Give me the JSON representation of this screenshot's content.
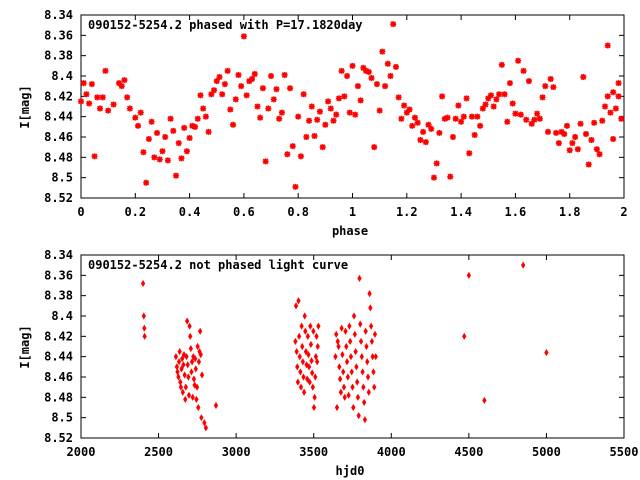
{
  "chart_data": [
    {
      "type": "scatter",
      "title": "090152-5254.2 phased with P=17.1820day",
      "xlabel": "phase",
      "ylabel": "I[mag]",
      "xlim": [
        0,
        2
      ],
      "ylim": [
        8.52,
        8.34
      ],
      "y_inverted": true,
      "xticks": [
        "0",
        "0.2",
        "0.4",
        "0.6",
        "0.8",
        "1",
        "1.2",
        "1.4",
        "1.6",
        "1.8",
        "2"
      ],
      "yticks": [
        "8.34",
        "8.36",
        "8.38",
        "8.4",
        "8.42",
        "8.44",
        "8.46",
        "8.48",
        "8.5",
        "8.52"
      ],
      "marker": "star",
      "color": "#ff0000",
      "points": [
        [
          0.0,
          8.425
        ],
        [
          0.01,
          8.407
        ],
        [
          0.02,
          8.418
        ],
        [
          0.03,
          8.427
        ],
        [
          0.04,
          8.408
        ],
        [
          0.05,
          8.479
        ],
        [
          0.06,
          8.421
        ],
        [
          0.07,
          8.432
        ],
        [
          0.08,
          8.421
        ],
        [
          0.09,
          8.395
        ],
        [
          0.1,
          8.434
        ],
        [
          0.12,
          8.428
        ],
        [
          0.14,
          8.407
        ],
        [
          0.15,
          8.41
        ],
        [
          0.16,
          8.404
        ],
        [
          0.17,
          8.421
        ],
        [
          0.18,
          8.432
        ],
        [
          0.2,
          8.441
        ],
        [
          0.21,
          8.449
        ],
        [
          0.22,
          8.436
        ],
        [
          0.23,
          8.475
        ],
        [
          0.24,
          8.505
        ],
        [
          0.25,
          8.462
        ],
        [
          0.26,
          8.445
        ],
        [
          0.27,
          8.48
        ],
        [
          0.28,
          8.456
        ],
        [
          0.29,
          8.482
        ],
        [
          0.3,
          8.474
        ],
        [
          0.31,
          8.46
        ],
        [
          0.32,
          8.483
        ],
        [
          0.33,
          8.442
        ],
        [
          0.34,
          8.454
        ],
        [
          0.35,
          8.498
        ],
        [
          0.36,
          8.466
        ],
        [
          0.37,
          8.481
        ],
        [
          0.38,
          8.451
        ],
        [
          0.39,
          8.474
        ],
        [
          0.4,
          8.461
        ],
        [
          0.41,
          8.449
        ],
        [
          0.42,
          8.45
        ],
        [
          0.43,
          8.442
        ],
        [
          0.44,
          8.419
        ],
        [
          0.45,
          8.432
        ],
        [
          0.46,
          8.44
        ],
        [
          0.47,
          8.455
        ],
        [
          0.48,
          8.418
        ],
        [
          0.49,
          8.414
        ],
        [
          0.5,
          8.405
        ],
        [
          0.51,
          8.401
        ],
        [
          0.52,
          8.418
        ],
        [
          0.53,
          8.408
        ],
        [
          0.54,
          8.395
        ],
        [
          0.55,
          8.433
        ],
        [
          0.56,
          8.448
        ],
        [
          0.57,
          8.423
        ],
        [
          0.58,
          8.399
        ],
        [
          0.59,
          8.41
        ],
        [
          0.6,
          8.361
        ],
        [
          0.61,
          8.419
        ],
        [
          0.62,
          8.405
        ],
        [
          0.63,
          8.403
        ],
        [
          0.64,
          8.398
        ],
        [
          0.65,
          8.43
        ],
        [
          0.66,
          8.441
        ],
        [
          0.67,
          8.412
        ],
        [
          0.68,
          8.484
        ],
        [
          0.69,
          8.432
        ],
        [
          0.7,
          8.4
        ],
        [
          0.71,
          8.423
        ],
        [
          0.72,
          8.413
        ],
        [
          0.73,
          8.442
        ],
        [
          0.74,
          8.436
        ],
        [
          0.75,
          8.399
        ],
        [
          0.76,
          8.477
        ],
        [
          0.77,
          8.412
        ],
        [
          0.78,
          8.469
        ],
        [
          0.79,
          8.509
        ],
        [
          0.8,
          8.44
        ],
        [
          0.81,
          8.479
        ],
        [
          0.82,
          8.418
        ],
        [
          0.83,
          8.46
        ],
        [
          0.84,
          8.444
        ],
        [
          0.85,
          8.43
        ],
        [
          0.86,
          8.459
        ],
        [
          0.87,
          8.443
        ],
        [
          0.88,
          8.435
        ],
        [
          0.89,
          8.47
        ],
        [
          0.9,
          8.448
        ],
        [
          0.91,
          8.425
        ],
        [
          0.92,
          8.432
        ],
        [
          0.93,
          8.444
        ],
        [
          0.94,
          8.438
        ],
        [
          0.95,
          8.422
        ],
        [
          0.96,
          8.395
        ],
        [
          0.97,
          8.42
        ],
        [
          0.98,
          8.4
        ],
        [
          0.99,
          8.436
        ],
        [
          1.0,
          8.39
        ],
        [
          1.01,
          8.438
        ],
        [
          1.02,
          8.41
        ],
        [
          1.03,
          8.424
        ],
        [
          1.04,
          8.392
        ],
        [
          1.05,
          8.395
        ],
        [
          1.06,
          8.396
        ],
        [
          1.07,
          8.402
        ],
        [
          1.08,
          8.47
        ],
        [
          1.09,
          8.408
        ],
        [
          1.1,
          8.434
        ],
        [
          1.11,
          8.376
        ],
        [
          1.12,
          8.41
        ],
        [
          1.13,
          8.388
        ],
        [
          1.14,
          8.4
        ],
        [
          1.15,
          8.349
        ],
        [
          1.16,
          8.391
        ],
        [
          1.17,
          8.421
        ],
        [
          1.18,
          8.442
        ],
        [
          1.19,
          8.429
        ],
        [
          1.2,
          8.436
        ],
        [
          1.21,
          8.433
        ],
        [
          1.22,
          8.449
        ],
        [
          1.23,
          8.441
        ],
        [
          1.24,
          8.446
        ],
        [
          1.25,
          8.463
        ],
        [
          1.26,
          8.455
        ],
        [
          1.27,
          8.465
        ],
        [
          1.28,
          8.448
        ],
        [
          1.29,
          8.452
        ],
        [
          1.3,
          8.5
        ],
        [
          1.31,
          8.486
        ],
        [
          1.32,
          8.456
        ],
        [
          1.33,
          8.42
        ],
        [
          1.34,
          8.442
        ],
        [
          1.35,
          8.441
        ],
        [
          1.36,
          8.499
        ],
        [
          1.37,
          8.46
        ],
        [
          1.38,
          8.442
        ],
        [
          1.39,
          8.429
        ],
        [
          1.4,
          8.445
        ],
        [
          1.41,
          8.44
        ],
        [
          1.42,
          8.422
        ],
        [
          1.43,
          8.476
        ],
        [
          1.44,
          8.44
        ],
        [
          1.45,
          8.458
        ],
        [
          1.46,
          8.44
        ],
        [
          1.47,
          8.449
        ],
        [
          1.48,
          8.432
        ],
        [
          1.49,
          8.428
        ],
        [
          1.5,
          8.422
        ],
        [
          1.51,
          8.419
        ],
        [
          1.52,
          8.43
        ],
        [
          1.53,
          8.423
        ],
        [
          1.54,
          8.418
        ],
        [
          1.55,
          8.389
        ],
        [
          1.56,
          8.418
        ],
        [
          1.57,
          8.445
        ],
        [
          1.58,
          8.407
        ],
        [
          1.59,
          8.427
        ],
        [
          1.6,
          8.437
        ],
        [
          1.61,
          8.385
        ],
        [
          1.62,
          8.438
        ],
        [
          1.63,
          8.395
        ],
        [
          1.64,
          8.443
        ],
        [
          1.65,
          8.405
        ],
        [
          1.66,
          8.447
        ],
        [
          1.67,
          8.443
        ],
        [
          1.68,
          8.437
        ],
        [
          1.69,
          8.442
        ],
        [
          1.7,
          8.421
        ],
        [
          1.71,
          8.41
        ],
        [
          1.72,
          8.455
        ],
        [
          1.73,
          8.403
        ],
        [
          1.74,
          8.411
        ],
        [
          1.75,
          8.456
        ],
        [
          1.76,
          8.466
        ],
        [
          1.77,
          8.455
        ],
        [
          1.78,
          8.457
        ],
        [
          1.79,
          8.449
        ],
        [
          1.8,
          8.473
        ],
        [
          1.81,
          8.466
        ],
        [
          1.82,
          8.46
        ],
        [
          1.83,
          8.472
        ],
        [
          1.84,
          8.447
        ],
        [
          1.85,
          8.401
        ],
        [
          1.86,
          8.457
        ],
        [
          1.87,
          8.487
        ],
        [
          1.88,
          8.463
        ],
        [
          1.89,
          8.446
        ],
        [
          1.9,
          8.472
        ],
        [
          1.91,
          8.477
        ],
        [
          1.92,
          8.444
        ],
        [
          1.93,
          8.43
        ],
        [
          1.94,
          8.42
        ],
        [
          1.95,
          8.436
        ],
        [
          1.96,
          8.462
        ],
        [
          1.97,
          8.432
        ],
        [
          1.98,
          8.42
        ],
        [
          1.99,
          8.442
        ],
        [
          1.94,
          8.37
        ],
        [
          1.96,
          8.416
        ],
        [
          1.98,
          8.407
        ]
      ]
    },
    {
      "type": "scatter",
      "title": "090152-5254.2 not phased light curve",
      "xlabel": "hjd0",
      "ylabel": "I[mag]",
      "xlim": [
        2000,
        5500
      ],
      "ylim": [
        8.52,
        8.34
      ],
      "y_inverted": true,
      "xticks": [
        "2000",
        "2500",
        "3000",
        "3500",
        "4000",
        "4500",
        "5000",
        "5500"
      ],
      "yticks": [
        "8.34",
        "8.36",
        "8.38",
        "8.4",
        "8.42",
        "8.44",
        "8.46",
        "8.48",
        "8.5",
        "8.52"
      ],
      "marker": "diamond",
      "color": "#ff0000",
      "points": [
        [
          2400,
          8.368
        ],
        [
          2405,
          8.4
        ],
        [
          2408,
          8.412
        ],
        [
          2410,
          8.42
        ],
        [
          2612,
          8.44
        ],
        [
          2618,
          8.45
        ],
        [
          2622,
          8.455
        ],
        [
          2628,
          8.46
        ],
        [
          2632,
          8.445
        ],
        [
          2636,
          8.435
        ],
        [
          2640,
          8.465
        ],
        [
          2644,
          8.47
        ],
        [
          2648,
          8.452
        ],
        [
          2652,
          8.442
        ],
        [
          2656,
          8.475
        ],
        [
          2660,
          8.448
        ],
        [
          2664,
          8.438
        ],
        [
          2668,
          8.458
        ],
        [
          2672,
          8.482
        ],
        [
          2676,
          8.47
        ],
        [
          2680,
          8.44
        ],
        [
          2684,
          8.405
        ],
        [
          2688,
          8.448
        ],
        [
          2692,
          8.46
        ],
        [
          2696,
          8.478
        ],
        [
          2700,
          8.41
        ],
        [
          2704,
          8.42
        ],
        [
          2708,
          8.432
        ],
        [
          2712,
          8.455
        ],
        [
          2716,
          8.445
        ],
        [
          2720,
          8.48
        ],
        [
          2724,
          8.44
        ],
        [
          2728,
          8.462
        ],
        [
          2732,
          8.468
        ],
        [
          2736,
          8.442
        ],
        [
          2740,
          8.452
        ],
        [
          2744,
          8.482
        ],
        [
          2748,
          8.47
        ],
        [
          2752,
          8.43
        ],
        [
          2756,
          8.49
        ],
        [
          2760,
          8.445
        ],
        [
          2764,
          8.435
        ],
        [
          2768,
          8.415
        ],
        [
          2772,
          8.438
        ],
        [
          2776,
          8.5
        ],
        [
          2780,
          8.458
        ],
        [
          2795,
          8.505
        ],
        [
          2805,
          8.51
        ],
        [
          2870,
          8.488
        ],
        [
          3382,
          8.425
        ],
        [
          3386,
          8.39
        ],
        [
          3390,
          8.435
        ],
        [
          3394,
          8.45
        ],
        [
          3398,
          8.465
        ],
        [
          3402,
          8.385
        ],
        [
          3406,
          8.42
        ],
        [
          3410,
          8.44
        ],
        [
          3414,
          8.455
        ],
        [
          3418,
          8.47
        ],
        [
          3422,
          8.41
        ],
        [
          3426,
          8.43
        ],
        [
          3430,
          8.445
        ],
        [
          3434,
          8.46
        ],
        [
          3438,
          8.475
        ],
        [
          3442,
          8.4
        ],
        [
          3446,
          8.415
        ],
        [
          3450,
          8.435
        ],
        [
          3454,
          8.448
        ],
        [
          3458,
          8.462
        ],
        [
          3462,
          8.42
        ],
        [
          3466,
          8.438
        ],
        [
          3470,
          8.45
        ],
        [
          3474,
          8.465
        ],
        [
          3478,
          8.41
        ],
        [
          3482,
          8.428
        ],
        [
          3486,
          8.444
        ],
        [
          3490,
          8.456
        ],
        [
          3494,
          8.47
        ],
        [
          3498,
          8.415
        ],
        [
          3502,
          8.49
        ],
        [
          3506,
          8.48
        ],
        [
          3510,
          8.46
        ],
        [
          3514,
          8.44
        ],
        [
          3518,
          8.42
        ],
        [
          3522,
          8.445
        ],
        [
          3526,
          8.43
        ],
        [
          3530,
          8.41
        ],
        [
          3640,
          8.44
        ],
        [
          3645,
          8.418
        ],
        [
          3650,
          8.49
        ],
        [
          3655,
          8.425
        ],
        [
          3660,
          8.43
        ],
        [
          3665,
          8.45
        ],
        [
          3670,
          8.462
        ],
        [
          3675,
          8.475
        ],
        [
          3680,
          8.412
        ],
        [
          3685,
          8.438
        ],
        [
          3690,
          8.455
        ],
        [
          3695,
          8.47
        ],
        [
          3700,
          8.48
        ],
        [
          3705,
          8.415
        ],
        [
          3710,
          8.43
        ],
        [
          3715,
          8.445
        ],
        [
          3720,
          8.46
        ],
        [
          3725,
          8.478
        ],
        [
          3730,
          8.41
        ],
        [
          3735,
          8.425
        ],
        [
          3740,
          8.44
        ],
        [
          3745,
          8.455
        ],
        [
          3750,
          8.47
        ],
        [
          3755,
          8.49
        ],
        [
          3760,
          8.4
        ],
        [
          3765,
          8.418
        ],
        [
          3770,
          8.435
        ],
        [
          3775,
          8.45
        ],
        [
          3780,
          8.465
        ],
        [
          3785,
          8.48
        ],
        [
          3790,
          8.498
        ],
        [
          3795,
          8.363
        ],
        [
          3800,
          8.408
        ],
        [
          3805,
          8.425
        ],
        [
          3810,
          8.44
        ],
        [
          3815,
          8.455
        ],
        [
          3820,
          8.47
        ],
        [
          3825,
          8.485
        ],
        [
          3830,
          8.502
        ],
        [
          3835,
          8.415
        ],
        [
          3840,
          8.43
        ],
        [
          3845,
          8.445
        ],
        [
          3850,
          8.46
        ],
        [
          3855,
          8.475
        ],
        [
          3860,
          8.378
        ],
        [
          3865,
          8.392
        ],
        [
          3870,
          8.41
        ],
        [
          3875,
          8.425
        ],
        [
          3880,
          8.44
        ],
        [
          3885,
          8.455
        ],
        [
          3890,
          8.47
        ],
        [
          3895,
          8.418
        ],
        [
          3900,
          8.44
        ],
        [
          4470,
          8.42
        ],
        [
          4500,
          8.36
        ],
        [
          4600,
          8.483
        ],
        [
          4850,
          8.35
        ],
        [
          5000,
          8.436
        ]
      ]
    }
  ]
}
